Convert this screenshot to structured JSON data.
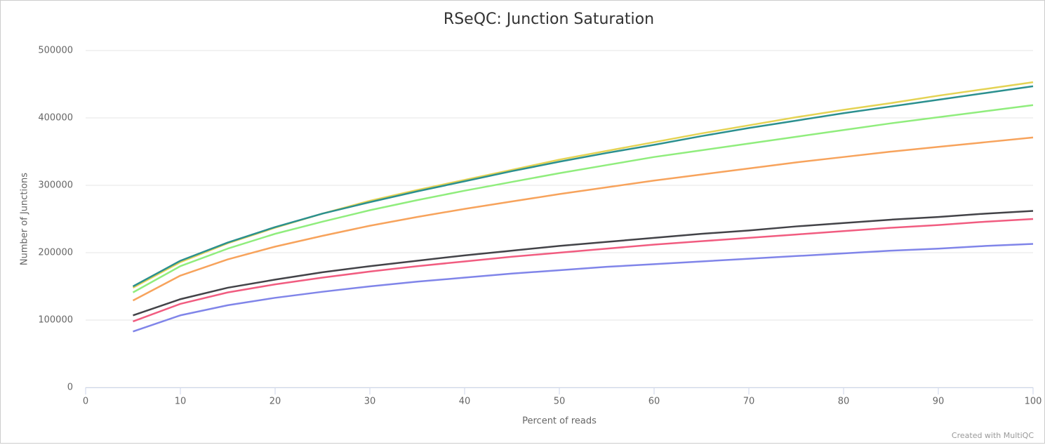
{
  "chart_data": {
    "type": "line",
    "title": "RSeQC: Junction Saturation",
    "x_label": "Percent of reads",
    "y_label": "Number of Junctions",
    "credit": "Created with MultiQC",
    "x": [
      5,
      10,
      15,
      20,
      25,
      30,
      35,
      40,
      45,
      50,
      55,
      60,
      65,
      70,
      75,
      80,
      85,
      90,
      95,
      100
    ],
    "series": [
      {
        "color": "#8085e9",
        "values": [
          83000,
          107000,
          122000,
          133000,
          142000,
          150000,
          157000,
          163000,
          169000,
          174000,
          179000,
          183000,
          187000,
          191000,
          195000,
          199000,
          203000,
          206000,
          210000,
          213000
        ]
      },
      {
        "color": "#f15c80",
        "values": [
          98000,
          124000,
          141000,
          153000,
          163000,
          172000,
          180000,
          187000,
          194000,
          200000,
          206000,
          212000,
          217000,
          222000,
          227000,
          232000,
          237000,
          241000,
          246000,
          250000
        ]
      },
      {
        "color": "#434348",
        "values": [
          107000,
          131000,
          148000,
          160000,
          171000,
          180000,
          188000,
          196000,
          203000,
          210000,
          216000,
          222000,
          228000,
          233000,
          239000,
          244000,
          249000,
          253000,
          258000,
          262000
        ]
      },
      {
        "color": "#f7a35c",
        "values": [
          129000,
          166000,
          190000,
          209000,
          225000,
          240000,
          253000,
          265000,
          276000,
          287000,
          297000,
          307000,
          316000,
          325000,
          334000,
          342000,
          350000,
          357000,
          364000,
          371000
        ]
      },
      {
        "color": "#90ed7d",
        "values": [
          141000,
          180000,
          206000,
          228000,
          246000,
          263000,
          278000,
          292000,
          305000,
          318000,
          330000,
          342000,
          352000,
          362000,
          372000,
          382000,
          392000,
          401000,
          410000,
          419000
        ]
      },
      {
        "color": "#e4d354",
        "values": [
          148000,
          186000,
          214000,
          237000,
          258000,
          277000,
          293000,
          308000,
          323000,
          338000,
          351000,
          364000,
          377000,
          389000,
          401000,
          412000,
          422000,
          433000,
          443000,
          453000
        ]
      },
      {
        "color": "#2b908f",
        "values": [
          150000,
          188000,
          215000,
          238000,
          258000,
          275000,
          291000,
          306000,
          321000,
          335000,
          348000,
          360000,
          373000,
          385000,
          396000,
          407000,
          417000,
          427000,
          437000,
          447000
        ]
      }
    ],
    "xlim": [
      0,
      100
    ],
    "xticks": [
      0,
      10,
      20,
      30,
      40,
      50,
      60,
      70,
      80,
      90,
      100
    ],
    "ylim": [
      0,
      500000
    ],
    "yticks": [
      0,
      100000,
      200000,
      300000,
      400000,
      500000
    ],
    "grid": true
  }
}
